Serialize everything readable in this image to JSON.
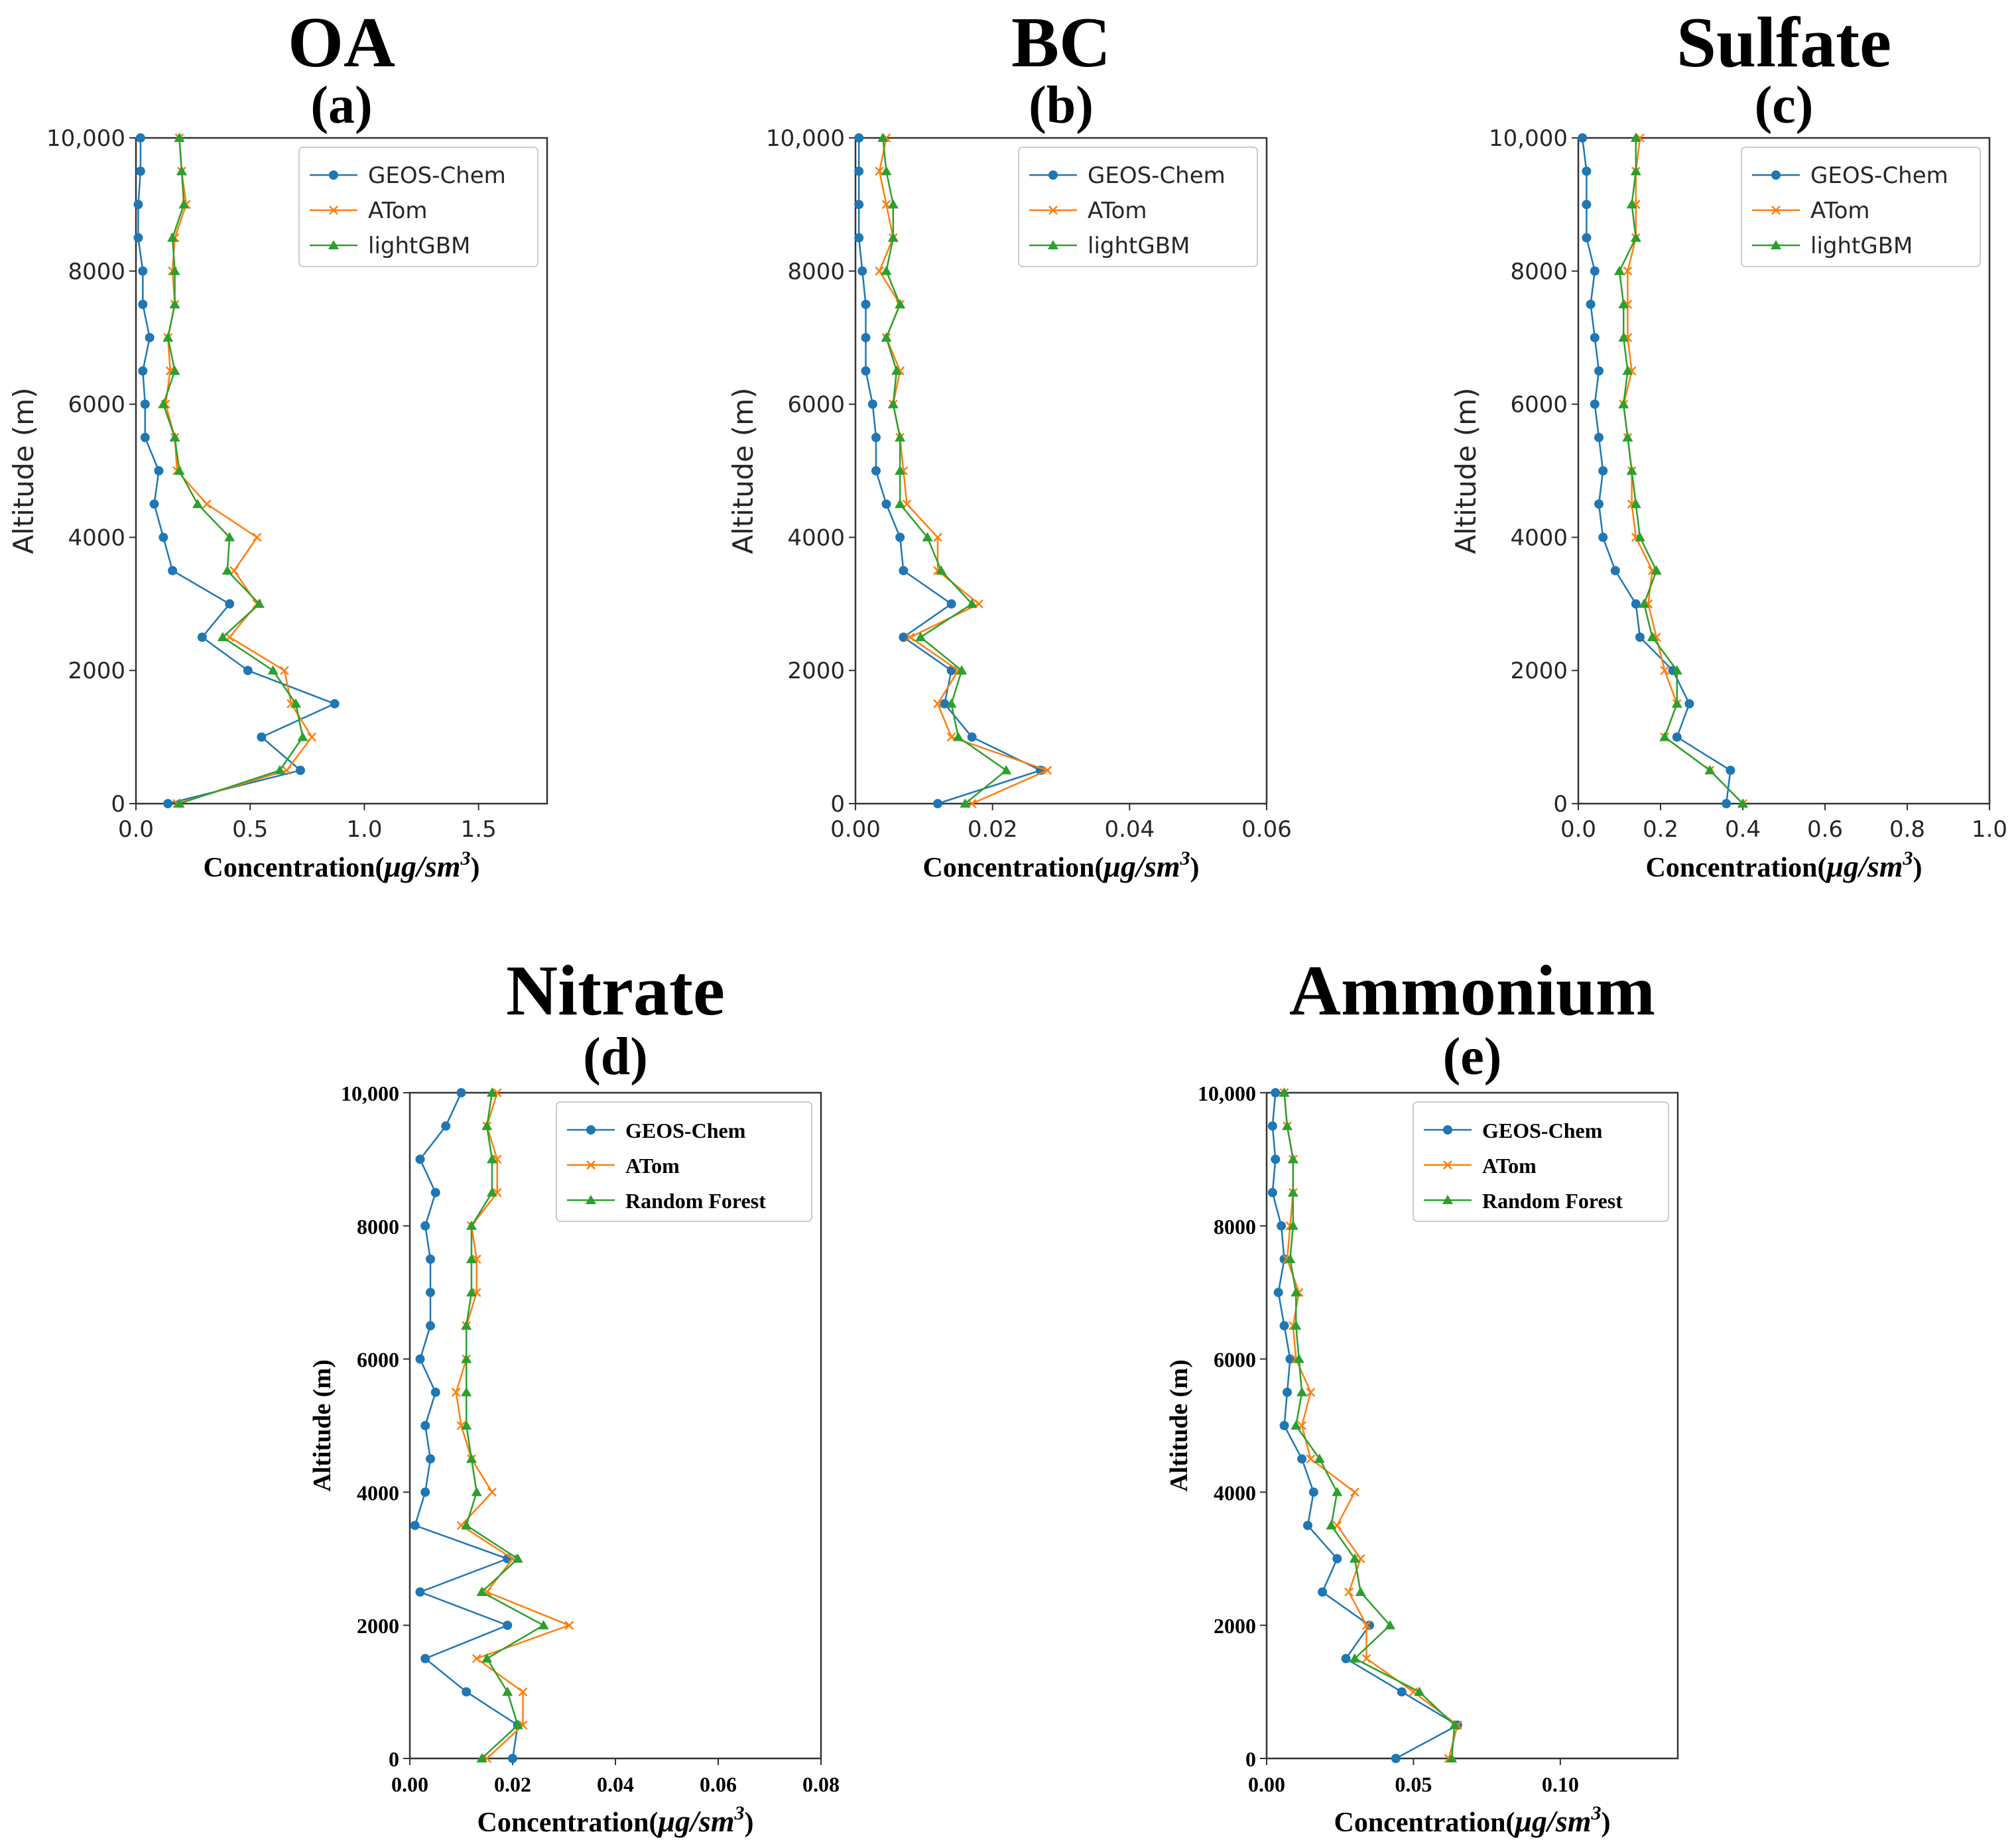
{
  "figure_colors": {
    "GEOS-Chem": "#1f77b4",
    "ATom": "#ff7f0e",
    "ML": "#2ca02c"
  },
  "chart_data": [
    {
      "id": "oa",
      "type": "line",
      "title": "OA",
      "subtitle": "(a)",
      "xlabel_main": "Concentration(",
      "xlabel_unit": "μg/sm",
      "xlabel_sup": "3",
      "xlabel_close": ")",
      "ylabel": "Altitude (m)",
      "xlim": [
        0,
        1.8
      ],
      "ylim": [
        0,
        10000
      ],
      "xticks": [
        0.0,
        0.5,
        1.0,
        1.5
      ],
      "xtick_labels": [
        "0.0",
        "0.5",
        "1.0",
        "1.5"
      ],
      "yticks": [
        0,
        2000,
        4000,
        6000,
        8000,
        10000
      ],
      "ytick_labels": [
        "0",
        "2000",
        "4000",
        "6000",
        "8000",
        "10,000"
      ],
      "font": "sans",
      "legend": "top-right",
      "altitudes": [
        0,
        500,
        1000,
        1500,
        2000,
        2500,
        3000,
        3500,
        4000,
        4500,
        5000,
        5500,
        6000,
        6500,
        7000,
        7500,
        8000,
        8500,
        9000,
        9500,
        10000
      ],
      "series": [
        {
          "name": "GEOS-Chem",
          "key": "GEOS-Chem",
          "marker": "circle",
          "values": [
            0.14,
            0.72,
            0.55,
            0.87,
            0.49,
            0.29,
            0.41,
            0.16,
            0.12,
            0.08,
            0.1,
            0.04,
            0.04,
            0.03,
            0.06,
            0.03,
            0.03,
            0.01,
            0.01,
            0.02,
            0.02
          ]
        },
        {
          "name": "ATom",
          "key": "ATom",
          "marker": "x",
          "values": [
            0.18,
            0.66,
            0.77,
            0.68,
            0.65,
            0.41,
            0.53,
            0.43,
            0.53,
            0.31,
            0.18,
            0.17,
            0.13,
            0.15,
            0.14,
            0.17,
            0.16,
            0.17,
            0.22,
            0.2,
            0.19
          ]
        },
        {
          "name": "lightGBM",
          "key": "ML",
          "marker": "triangle",
          "values": [
            0.19,
            0.63,
            0.73,
            0.7,
            0.6,
            0.38,
            0.54,
            0.4,
            0.41,
            0.27,
            0.19,
            0.17,
            0.12,
            0.17,
            0.14,
            0.17,
            0.17,
            0.16,
            0.21,
            0.2,
            0.19
          ]
        }
      ]
    },
    {
      "id": "bc",
      "type": "line",
      "title": "BC",
      "subtitle": "(b)",
      "xlabel_main": "Concentration(",
      "xlabel_unit": "μg/sm",
      "xlabel_sup": "3",
      "xlabel_close": ")",
      "ylabel": "Altitude (m)",
      "xlim": [
        0,
        0.06
      ],
      "ylim": [
        0,
        10000
      ],
      "xticks": [
        0.0,
        0.02,
        0.04,
        0.06
      ],
      "xtick_labels": [
        "0.00",
        "0.02",
        "0.04",
        "0.06"
      ],
      "yticks": [
        0,
        2000,
        4000,
        6000,
        8000,
        10000
      ],
      "ytick_labels": [
        "0",
        "2000",
        "4000",
        "6000",
        "8000",
        "10,000"
      ],
      "font": "sans",
      "legend": "top-right",
      "altitudes": [
        0,
        500,
        1000,
        1500,
        2000,
        2500,
        3000,
        3500,
        4000,
        4500,
        5000,
        5500,
        6000,
        6500,
        7000,
        7500,
        8000,
        8500,
        9000,
        9500,
        10000
      ],
      "series": [
        {
          "name": "GEOS-Chem",
          "key": "GEOS-Chem",
          "marker": "circle",
          "values": [
            0.012,
            0.027,
            0.017,
            0.013,
            0.014,
            0.007,
            0.014,
            0.007,
            0.0065,
            0.0045,
            0.003,
            0.003,
            0.0025,
            0.0015,
            0.0015,
            0.0015,
            0.001,
            0.0005,
            0.0005,
            0.0005,
            0.0005
          ]
        },
        {
          "name": "ATom",
          "key": "ATom",
          "marker": "x",
          "values": [
            0.017,
            0.028,
            0.014,
            0.012,
            0.015,
            0.008,
            0.018,
            0.012,
            0.012,
            0.0075,
            0.007,
            0.0065,
            0.0055,
            0.0065,
            0.0045,
            0.0065,
            0.0035,
            0.0055,
            0.0045,
            0.0035,
            0.0045
          ]
        },
        {
          "name": "lightGBM",
          "key": "ML",
          "marker": "triangle",
          "values": [
            0.016,
            0.022,
            0.015,
            0.014,
            0.0155,
            0.0095,
            0.017,
            0.0125,
            0.0105,
            0.0065,
            0.0065,
            0.0065,
            0.0055,
            0.006,
            0.0045,
            0.0065,
            0.0045,
            0.0055,
            0.0055,
            0.0045,
            0.004
          ]
        }
      ]
    },
    {
      "id": "sulfate",
      "type": "line",
      "title": "Sulfate",
      "subtitle": "(c)",
      "xlabel_main": "Concentration(",
      "xlabel_unit": "μg/sm",
      "xlabel_sup": "3",
      "xlabel_close": ")",
      "ylabel": "Altitude (m)",
      "xlim": [
        0,
        1.0
      ],
      "ylim": [
        0,
        10000
      ],
      "xticks": [
        0.0,
        0.2,
        0.4,
        0.6,
        0.8,
        1.0
      ],
      "xtick_labels": [
        "0.0",
        "0.2",
        "0.4",
        "0.6",
        "0.8",
        "1.0"
      ],
      "yticks": [
        0,
        2000,
        4000,
        6000,
        8000,
        10000
      ],
      "ytick_labels": [
        "0",
        "2000",
        "4000",
        "6000",
        "8000",
        "10,000"
      ],
      "font": "sans",
      "legend": "top-right",
      "altitudes": [
        0,
        500,
        1000,
        1500,
        2000,
        2500,
        3000,
        3500,
        4000,
        4500,
        5000,
        5500,
        6000,
        6500,
        7000,
        7500,
        8000,
        8500,
        9000,
        9500,
        10000
      ],
      "series": [
        {
          "name": "GEOS-Chem",
          "key": "GEOS-Chem",
          "marker": "circle",
          "values": [
            0.36,
            0.37,
            0.24,
            0.27,
            0.23,
            0.15,
            0.14,
            0.09,
            0.06,
            0.05,
            0.06,
            0.05,
            0.04,
            0.05,
            0.04,
            0.03,
            0.04,
            0.02,
            0.02,
            0.02,
            0.01
          ]
        },
        {
          "name": "ATom",
          "key": "ATom",
          "marker": "x",
          "values": [
            0.4,
            0.32,
            0.21,
            0.24,
            0.21,
            0.19,
            0.17,
            0.18,
            0.14,
            0.13,
            0.13,
            0.12,
            0.11,
            0.13,
            0.12,
            0.12,
            0.12,
            0.14,
            0.14,
            0.14,
            0.15
          ]
        },
        {
          "name": "lightGBM",
          "key": "ML",
          "marker": "triangle",
          "values": [
            0.4,
            0.32,
            0.21,
            0.24,
            0.24,
            0.18,
            0.16,
            0.19,
            0.15,
            0.14,
            0.13,
            0.12,
            0.11,
            0.12,
            0.11,
            0.11,
            0.1,
            0.14,
            0.13,
            0.14,
            0.14
          ]
        }
      ]
    },
    {
      "id": "nitrate",
      "type": "line",
      "title": "Nitrate",
      "subtitle": "(d)",
      "xlabel_main": "Concentration(",
      "xlabel_unit": "μg/sm",
      "xlabel_sup": "3",
      "xlabel_close": ")",
      "ylabel": "Altitude (m)",
      "xlim": [
        0,
        0.08
      ],
      "ylim": [
        0,
        10000
      ],
      "xticks": [
        0.0,
        0.02,
        0.04,
        0.06,
        0.08
      ],
      "xtick_labels": [
        "0.00",
        "0.02",
        "0.04",
        "0.06",
        "0.08"
      ],
      "yticks": [
        0,
        2000,
        4000,
        6000,
        8000,
        10000
      ],
      "ytick_labels": [
        "0",
        "2000",
        "4000",
        "6000",
        "8000",
        "10,000"
      ],
      "font": "serif",
      "legend": "top-right",
      "altitudes": [
        0,
        500,
        1000,
        1500,
        2000,
        2500,
        3000,
        3500,
        4000,
        4500,
        5000,
        5500,
        6000,
        6500,
        7000,
        7500,
        8000,
        8500,
        9000,
        9500,
        10000
      ],
      "series": [
        {
          "name": "GEOS-Chem",
          "key": "GEOS-Chem",
          "marker": "circle",
          "values": [
            0.02,
            0.021,
            0.011,
            0.003,
            0.019,
            0.002,
            0.019,
            0.001,
            0.003,
            0.004,
            0.003,
            0.005,
            0.002,
            0.004,
            0.004,
            0.004,
            0.003,
            0.005,
            0.002,
            0.007,
            0.01
          ]
        },
        {
          "name": "ATom",
          "key": "ATom",
          "marker": "x",
          "values": [
            0.015,
            0.022,
            0.022,
            0.013,
            0.031,
            0.015,
            0.02,
            0.01,
            0.016,
            0.012,
            0.01,
            0.009,
            0.011,
            0.011,
            0.013,
            0.013,
            0.012,
            0.017,
            0.017,
            0.015,
            0.017
          ]
        },
        {
          "name": "Random Forest",
          "key": "ML",
          "marker": "triangle",
          "values": [
            0.014,
            0.021,
            0.019,
            0.015,
            0.026,
            0.014,
            0.021,
            0.011,
            0.013,
            0.012,
            0.011,
            0.011,
            0.011,
            0.011,
            0.012,
            0.012,
            0.012,
            0.016,
            0.016,
            0.015,
            0.016
          ]
        }
      ]
    },
    {
      "id": "ammonium",
      "type": "line",
      "title": "Ammonium",
      "subtitle": "(e)",
      "xlabel_main": "Concentration(",
      "xlabel_unit": "μg/sm",
      "xlabel_sup": "3",
      "xlabel_close": ")",
      "ylabel": "Altitude (m)",
      "xlim": [
        0,
        0.14
      ],
      "ylim": [
        0,
        10000
      ],
      "xticks": [
        0.0,
        0.05,
        0.1
      ],
      "xtick_labels": [
        "0.00",
        "0.05",
        "0.10"
      ],
      "yticks": [
        0,
        2000,
        4000,
        6000,
        8000,
        10000
      ],
      "ytick_labels": [
        "0",
        "2000",
        "4000",
        "6000",
        "8000",
        "10,000"
      ],
      "font": "serif",
      "legend": "top-right",
      "altitudes": [
        0,
        500,
        1000,
        1500,
        2000,
        2500,
        3000,
        3500,
        4000,
        4500,
        5000,
        5500,
        6000,
        6500,
        7000,
        7500,
        8000,
        8500,
        9000,
        9500,
        10000
      ],
      "series": [
        {
          "name": "GEOS-Chem",
          "key": "GEOS-Chem",
          "marker": "circle",
          "values": [
            0.044,
            0.065,
            0.046,
            0.027,
            0.035,
            0.019,
            0.024,
            0.014,
            0.016,
            0.012,
            0.006,
            0.007,
            0.008,
            0.006,
            0.004,
            0.006,
            0.005,
            0.002,
            0.003,
            0.002,
            0.003
          ]
        },
        {
          "name": "ATom",
          "key": "ATom",
          "marker": "x",
          "values": [
            0.062,
            0.065,
            0.05,
            0.034,
            0.034,
            0.028,
            0.032,
            0.024,
            0.03,
            0.015,
            0.012,
            0.015,
            0.01,
            0.009,
            0.011,
            0.007,
            0.008,
            0.009,
            0.009,
            0.007,
            0.006
          ]
        },
        {
          "name": "Random Forest",
          "key": "ML",
          "marker": "triangle",
          "values": [
            0.063,
            0.064,
            0.052,
            0.03,
            0.042,
            0.032,
            0.03,
            0.022,
            0.024,
            0.018,
            0.01,
            0.012,
            0.011,
            0.01,
            0.01,
            0.008,
            0.009,
            0.009,
            0.009,
            0.007,
            0.006
          ]
        }
      ]
    }
  ]
}
